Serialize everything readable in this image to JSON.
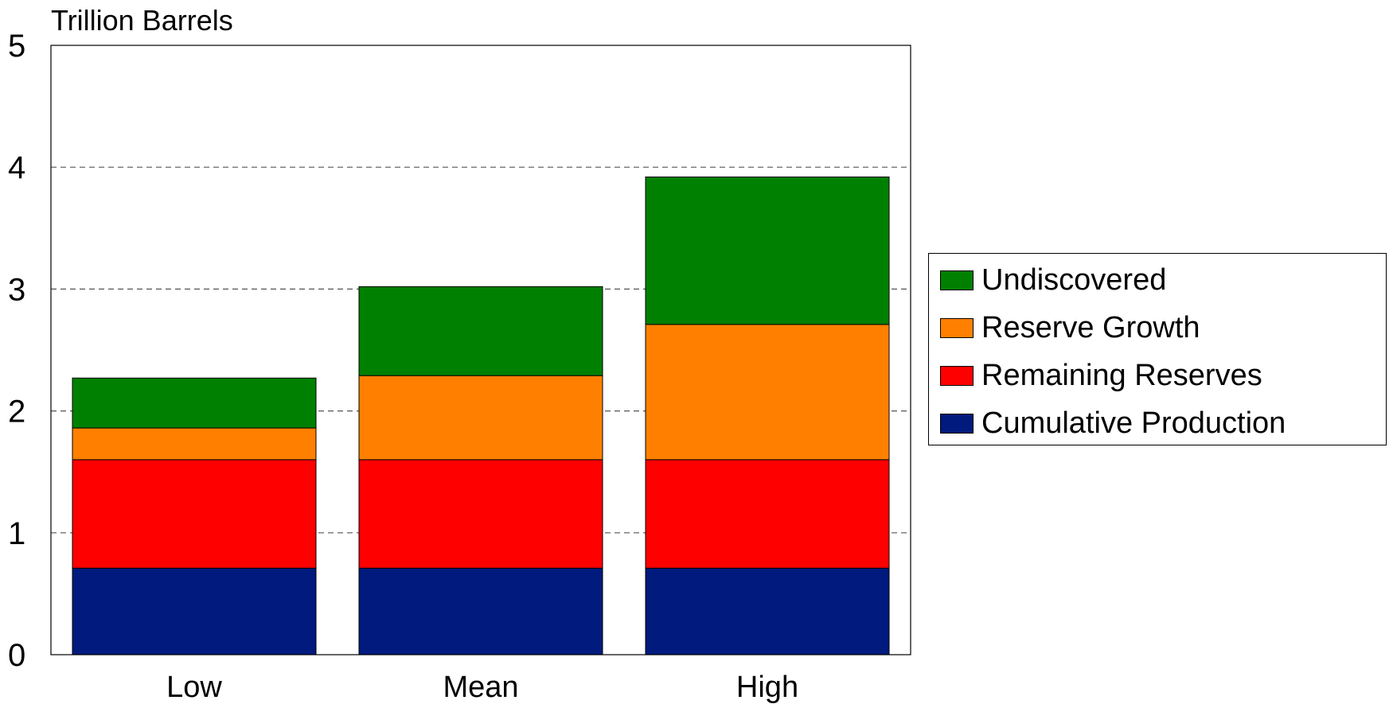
{
  "chart_data": {
    "type": "bar",
    "stacked": true,
    "ylabel": "Trillion Barrels",
    "categories": [
      "Low",
      "Mean",
      "High"
    ],
    "ylim": [
      0,
      5
    ],
    "yticks": [
      "0",
      "1",
      "2",
      "3",
      "4",
      "5"
    ],
    "grid": "horizontal dashed",
    "legend_position": "right",
    "series": [
      {
        "name": "Cumulative Production",
        "color": "#001a7d",
        "values": [
          0.71,
          0.71,
          0.71
        ]
      },
      {
        "name": "Remaining Reserves",
        "color": "#ff0000",
        "values": [
          0.89,
          0.89,
          0.89
        ]
      },
      {
        "name": "Reserve Growth",
        "color": "#ff8000",
        "values": [
          0.26,
          0.69,
          1.11
        ]
      },
      {
        "name": "Undiscovered",
        "color": "#008000",
        "values": [
          0.41,
          0.73,
          1.21
        ]
      }
    ]
  },
  "legend": {
    "items": [
      {
        "label": "Undiscovered",
        "color": "#008000"
      },
      {
        "label": "Reserve Growth",
        "color": "#ff8000"
      },
      {
        "label": "Remaining Reserves",
        "color": "#ff0000"
      },
      {
        "label": "Cumulative Production",
        "color": "#001a7d"
      }
    ]
  }
}
